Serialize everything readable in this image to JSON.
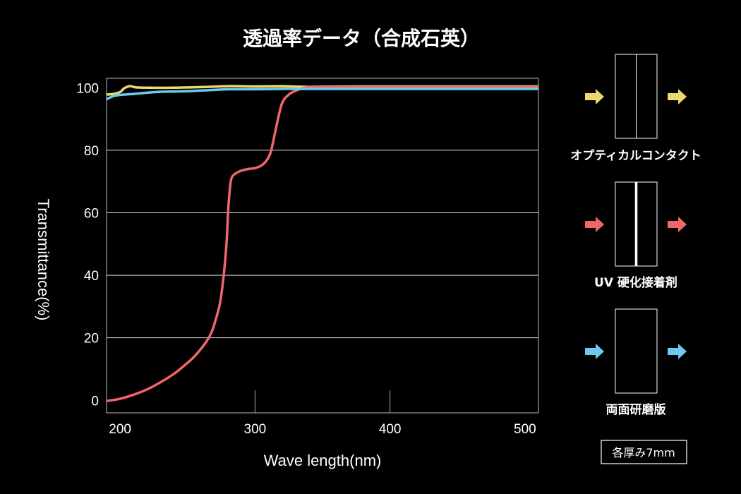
{
  "chart_data": {
    "type": "line",
    "title": "透過率データ（合成石英）",
    "xlabel": "Wave length(nm)",
    "ylabel": "Transmittance(%)",
    "xlim": [
      190,
      510
    ],
    "ylim": [
      -4,
      103
    ],
    "x_ticks": [
      200,
      300,
      400,
      500
    ],
    "y_ticks": [
      0,
      20,
      40,
      60,
      80,
      100
    ],
    "grid": "horizontal",
    "series": [
      {
        "name": "オプティカルコンタクト",
        "color": "#ecd96c",
        "x": [
          190,
          195,
          200,
          203,
          207,
          212,
          220,
          240,
          260,
          280,
          300,
          320,
          340,
          380,
          420,
          460,
          510
        ],
        "y": [
          97.8,
          98,
          98.6,
          99.8,
          100.5,
          100.1,
          100,
          100,
          100.2,
          100.5,
          100.4,
          100.5,
          100.3,
          100.4,
          100.4,
          100.4,
          100.4
        ]
      },
      {
        "name": "UV 硬化接着剤",
        "color": "#f0666a",
        "x": [
          190,
          200,
          210,
          220,
          230,
          240,
          250,
          255,
          260,
          265,
          268,
          271,
          274,
          276,
          277.5,
          279,
          280,
          281,
          282,
          283,
          284,
          286,
          290,
          295,
          300,
          305,
          309,
          312,
          316,
          320,
          325,
          330,
          335,
          340,
          350,
          400,
          450,
          510
        ],
        "y": [
          -0.2,
          0.5,
          1.8,
          3.5,
          5.8,
          8.5,
          12,
          14,
          16.5,
          19.5,
          22,
          26,
          31,
          37,
          43,
          51,
          60,
          66,
          70,
          71.5,
          72,
          72.7,
          73.5,
          74,
          74.3,
          75.2,
          77,
          80,
          88,
          95,
          97.8,
          99,
          99.8,
          100.2,
          100.2,
          100.2,
          100.2,
          100.2
        ]
      },
      {
        "name": "両面研磨版",
        "color": "#6ccaf0",
        "x": [
          190,
          195,
          200,
          210,
          220,
          230,
          240,
          250,
          260,
          270,
          280,
          300,
          320,
          340,
          380,
          420,
          460,
          510
        ],
        "y": [
          96.3,
          97.3,
          97.7,
          98,
          98.4,
          98.7,
          98.8,
          98.9,
          99.1,
          99.3,
          99.5,
          99.5,
          99.6,
          99.6,
          99.6,
          99.6,
          99.6,
          99.6
        ]
      }
    ]
  },
  "side_panel": {
    "items": [
      {
        "label": "オプティカルコンタクト",
        "color": "#ecd96c",
        "interface": "thin-line"
      },
      {
        "label": "UV 硬化接着剤",
        "color": "#f0666a",
        "interface": "thick-line"
      },
      {
        "label": "両面研磨版",
        "color": "#6ccaf0",
        "interface": "none"
      }
    ],
    "note": "各厚み7mm"
  }
}
